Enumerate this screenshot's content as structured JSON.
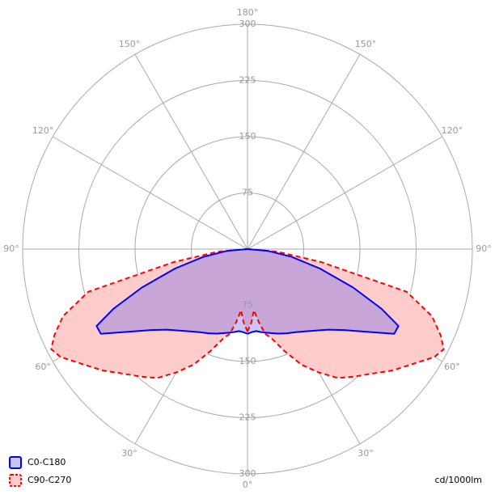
{
  "chart_data": {
    "type": "polar",
    "x": [
      0,
      3,
      6,
      9,
      12,
      15,
      20,
      25,
      30,
      35,
      40,
      45,
      50,
      55,
      60,
      63,
      66,
      70,
      75,
      80,
      85,
      90
    ],
    "series": [
      {
        "name": "C90-C270",
        "color": "#ff0000",
        "fill": "#ffcccc",
        "dashed": true,
        "values": [
          110,
          98,
          82,
          100,
          116,
          123,
          145,
          170,
          190,
          210,
          222,
          235,
          252,
          268,
          288,
          294,
          282,
          262,
          220,
          100,
          40,
          0
        ]
      },
      {
        "name": "C0-C180",
        "color": "#0000ff",
        "fill": "rgba(120,110,236,0.4)",
        "dashed": false,
        "values": [
          113,
          111,
          110,
          112,
          114,
          116,
          120,
          124,
          128,
          134,
          142,
          152,
          168,
          192,
          226,
          226,
          196,
          150,
          100,
          60,
          28,
          0
        ]
      }
    ],
    "ylim": [
      0,
      300
    ],
    "yticks": [
      75,
      150,
      225,
      300
    ],
    "xticks": [
      {
        "value": 0,
        "label": "0°"
      },
      {
        "value": 30,
        "label": "30°"
      },
      {
        "value": 60,
        "label": "60°"
      },
      {
        "value": 90,
        "label": "90°"
      },
      {
        "value": 120,
        "label": "120°"
      },
      {
        "value": 150,
        "label": "150°"
      },
      {
        "value": 180,
        "label": "180°"
      }
    ],
    "unit_label": "cd/1000lm"
  }
}
